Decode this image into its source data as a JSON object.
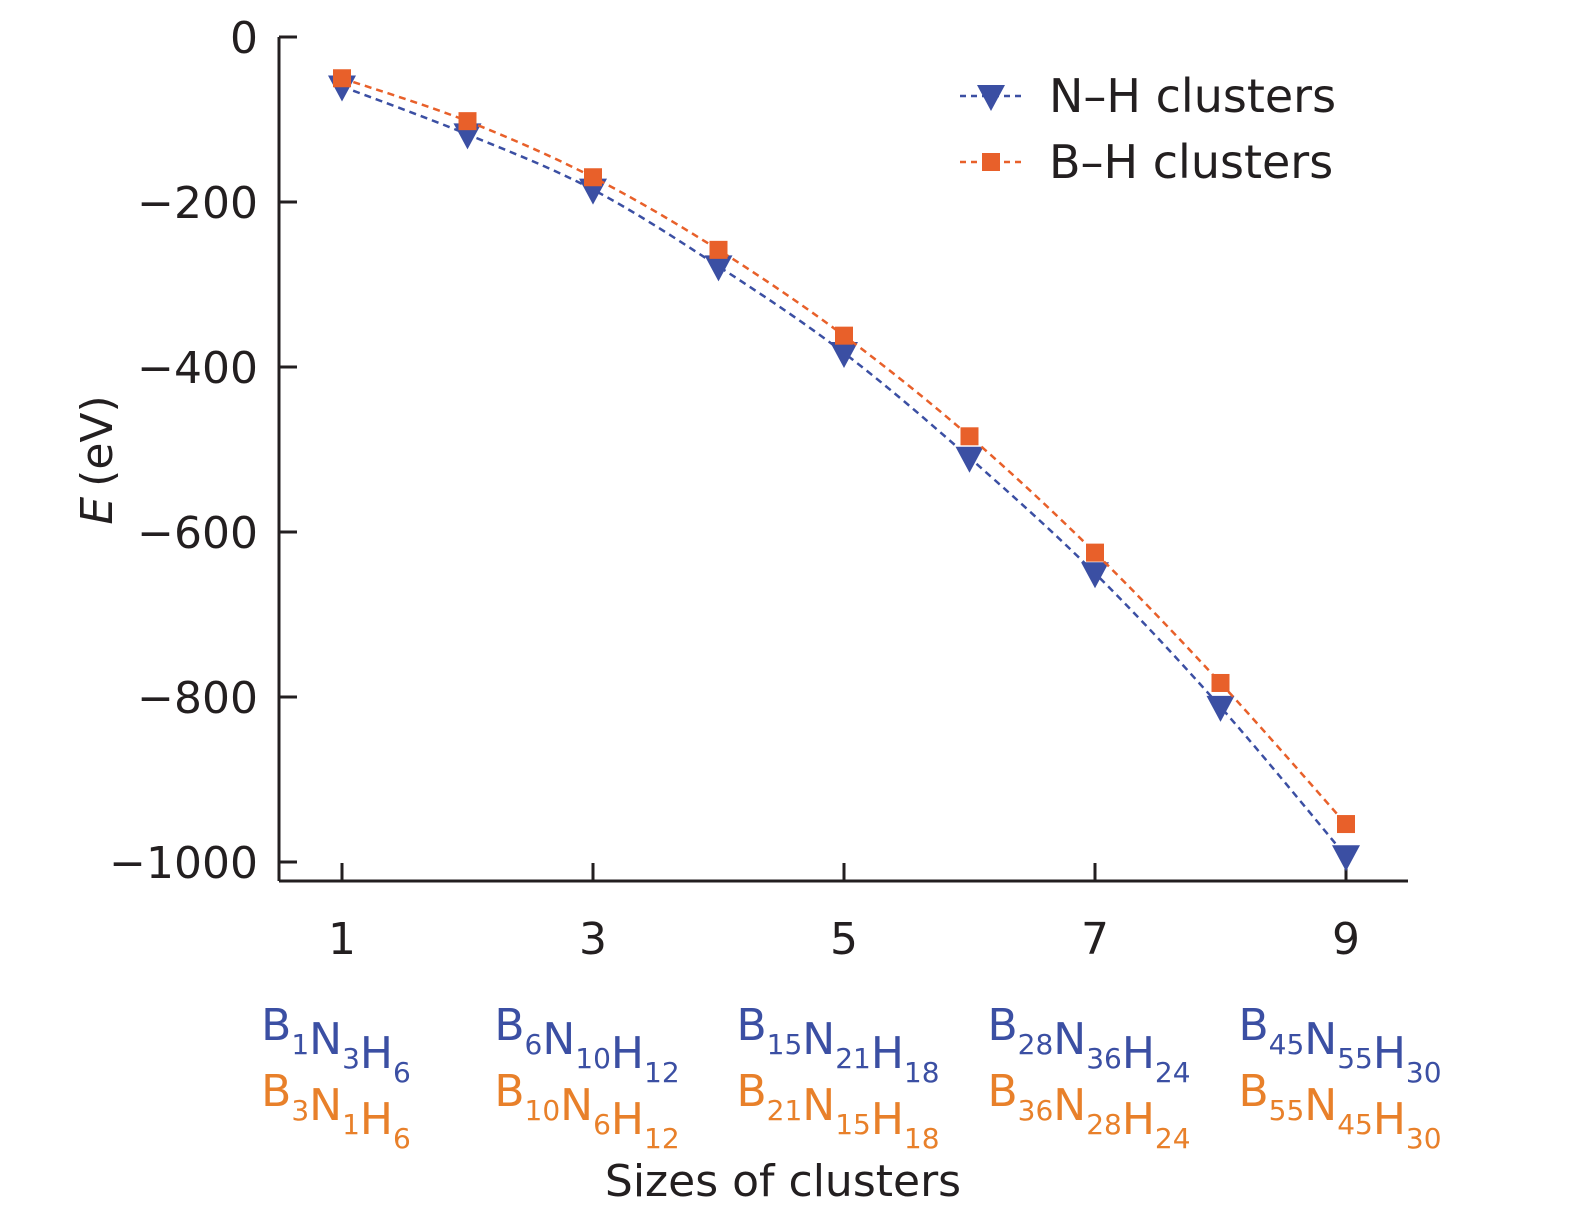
{
  "chart_data": {
    "type": "line",
    "xlabel": "Sizes of clusters",
    "ylabel": "E (eV)",
    "ylabel_italic": "E",
    "ylabel_unit": "(eV)",
    "xlim": [
      0.75,
      9.5
    ],
    "ylim": [
      -1020,
      0
    ],
    "x_ticks": [
      1,
      3,
      5,
      7,
      9
    ],
    "y_ticks": [
      0,
      -200,
      -400,
      -600,
      -800,
      -1000
    ],
    "y_tick_labels": [
      "0",
      "−200",
      "−400",
      "−600",
      "−800",
      "−1000"
    ],
    "x_tick_labels": [
      "1",
      "3",
      "5",
      "7",
      "9"
    ],
    "grid": false,
    "legend_position": "top-right",
    "series": [
      {
        "name": "N–H clusters",
        "color": "#3b4fa3",
        "marker": "triangle-down",
        "line": "dashed",
        "x": [
          1,
          2,
          3,
          4,
          5,
          6,
          7,
          8,
          9
        ],
        "y": [
          -60,
          -118,
          -185,
          -278,
          -383,
          -510,
          -650,
          -812,
          -993
        ]
      },
      {
        "name": "B–H clusters",
        "color": "#e8602a",
        "marker": "square",
        "line": "dashed",
        "x": [
          1,
          2,
          3,
          4,
          5,
          6,
          7,
          8,
          9
        ],
        "y": [
          -50,
          -102,
          -170,
          -258,
          -362,
          -484,
          -625,
          -783,
          -954
        ]
      }
    ],
    "formula_labels": [
      {
        "x": 1,
        "nh": [
          [
            "B",
            "1"
          ],
          [
            "N",
            "3"
          ],
          [
            "H",
            "6"
          ]
        ],
        "bh": [
          [
            "B",
            "3"
          ],
          [
            "N",
            "1"
          ],
          [
            "H",
            "6"
          ]
        ]
      },
      {
        "x": 3,
        "nh": [
          [
            "B",
            "6"
          ],
          [
            "N",
            "10"
          ],
          [
            "H",
            "12"
          ]
        ],
        "bh": [
          [
            "B",
            "10"
          ],
          [
            "N",
            "6"
          ],
          [
            "H",
            "12"
          ]
        ]
      },
      {
        "x": 5,
        "nh": [
          [
            "B",
            "15"
          ],
          [
            "N",
            "21"
          ],
          [
            "H",
            "18"
          ]
        ],
        "bh": [
          [
            "B",
            "21"
          ],
          [
            "N",
            "15"
          ],
          [
            "H",
            "18"
          ]
        ]
      },
      {
        "x": 7,
        "nh": [
          [
            "B",
            "28"
          ],
          [
            "N",
            "36"
          ],
          [
            "H",
            "24"
          ]
        ],
        "bh": [
          [
            "B",
            "36"
          ],
          [
            "N",
            "28"
          ],
          [
            "H",
            "24"
          ]
        ]
      },
      {
        "x": 9,
        "nh": [
          [
            "B",
            "45"
          ],
          [
            "N",
            "55"
          ],
          [
            "H",
            "30"
          ]
        ],
        "bh": [
          [
            "B",
            "55"
          ],
          [
            "N",
            "45"
          ],
          [
            "H",
            "30"
          ]
        ]
      }
    ],
    "formula_colors": {
      "nh": "#3b4fa3",
      "bh": "#e8802a"
    }
  }
}
